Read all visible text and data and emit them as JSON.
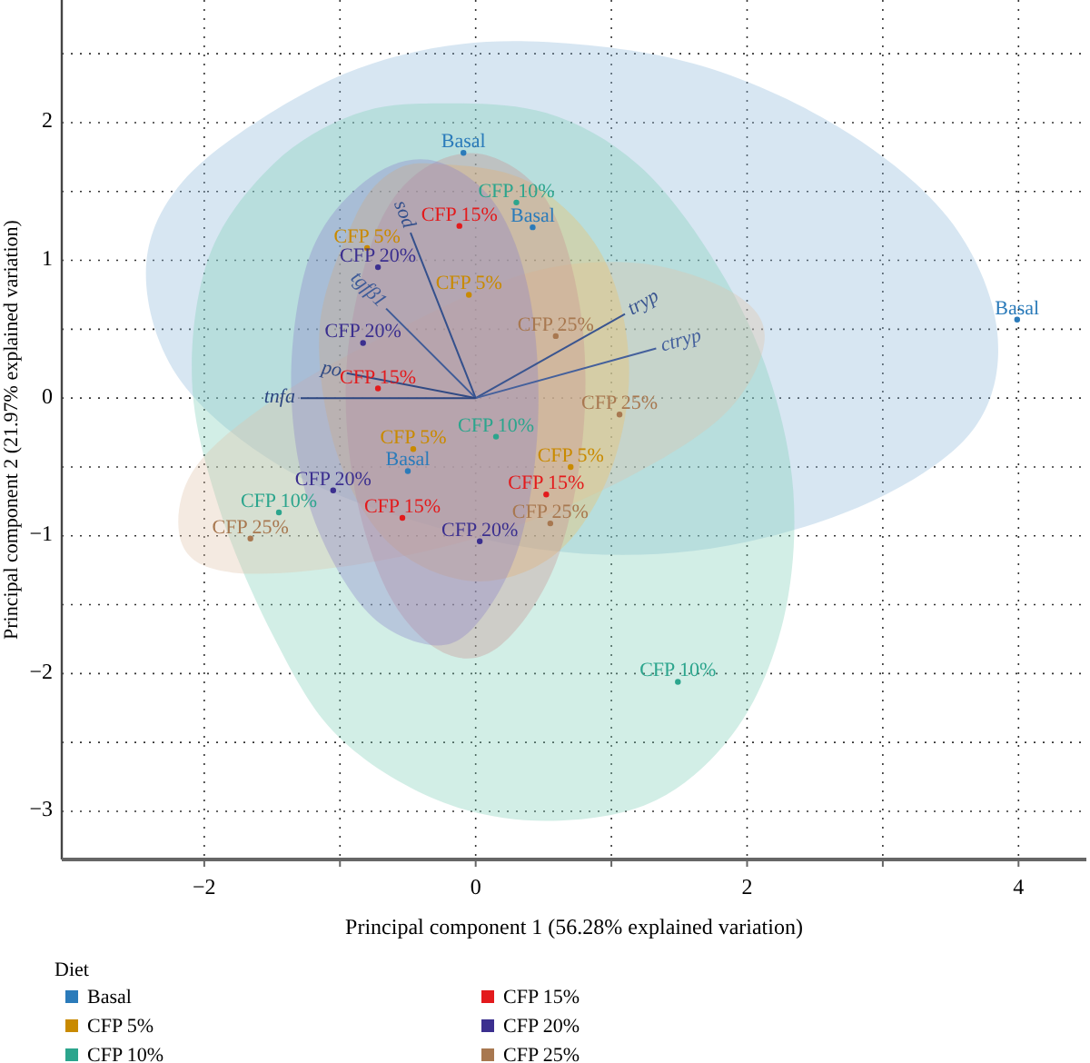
{
  "chart_data": {
    "type": "scatter",
    "xlabel": "Principal component 1 (56.28% explained variation)",
    "ylabel": "Principal component 2 (21.97% explained variation)",
    "legend_title": "Diet",
    "legend": "bottom",
    "grid": true,
    "xlim": [
      -3.05,
      4.5
    ],
    "ylim": [
      -3.35,
      2.89
    ],
    "xticks": [
      -2,
      {
        "value": -1,
        "label": null
      },
      0,
      {
        "value": 1,
        "label": null
      },
      2,
      {
        "value": 3,
        "label": null
      },
      4
    ],
    "yticks": [
      -3,
      {
        "value": -2.5,
        "label": null
      },
      -2,
      {
        "value": -1.5,
        "label": null
      },
      -1,
      {
        "value": -0.5,
        "label": null
      },
      0,
      {
        "value": 0.5,
        "label": null
      },
      1,
      {
        "value": 1.5,
        "label": null
      },
      2,
      {
        "value": 2.5,
        "label": null
      }
    ],
    "series": [
      {
        "type": "area",
        "color": "#8db8d9",
        "x": [
          0.39,
          1.6,
          2.67,
          3.48,
          3.84,
          3.68,
          2.94,
          1.87,
          0.79,
          -0.28,
          -1.36,
          -2.17,
          -2.43,
          -2.16,
          -1.36,
          -0.55
        ],
        "values": [
          2.59,
          2.43,
          1.97,
          1.31,
          0.51,
          -0.21,
          -0.74,
          -1.07,
          -1.13,
          -0.94,
          -0.54,
          0.12,
          0.91,
          1.57,
          2.16,
          2.49
        ]
      },
      {
        "type": "area",
        "color": "#7fcfb8",
        "x": [
          -0.28,
          0.52,
          1.19,
          1.73,
          2.13,
          2.34,
          2.27,
          1.93,
          1.33,
          0.52,
          -0.28,
          -1.02,
          -1.49,
          -1.89,
          -2.09,
          -1.96,
          -1.49,
          -0.89
        ],
        "values": [
          2.14,
          2.07,
          1.7,
          1.04,
          0.25,
          -0.67,
          -1.6,
          -2.39,
          -2.92,
          -3.07,
          -2.92,
          -2.45,
          -1.73,
          -0.8,
          0.12,
          1.04,
          1.7,
          2.06
        ]
      },
      {
        "type": "area",
        "color": "#e0c4a8",
        "x": [
          2.13,
          1.87,
          1.19,
          0.39,
          -0.55,
          -1.49,
          -2.09,
          -2.16,
          -1.76,
          -0.82,
          0.26,
          1.19,
          1.87
        ],
        "values": [
          0.45,
          0.78,
          0.98,
          0.91,
          0.51,
          -0.01,
          -0.54,
          -1.07,
          -1.27,
          -1.2,
          -0.94,
          -0.54,
          -0.08
        ]
      },
      {
        "type": "area",
        "color": "#f0c060",
        "x": [
          -0.28,
          0.39,
          0.93,
          1.13,
          0.99,
          0.59,
          -0.01,
          -0.62,
          -1.02,
          -1.15,
          -0.89,
          -0.62
        ],
        "values": [
          1.7,
          1.57,
          1.04,
          0.25,
          -0.54,
          -1.13,
          -1.33,
          -1.07,
          -0.41,
          0.51,
          1.31,
          1.64
        ]
      },
      {
        "type": "area",
        "color": "#c89090",
        "x": [
          0.05,
          0.52,
          0.77,
          0.79,
          0.59,
          0.19,
          -0.21,
          -0.62,
          -0.89,
          -0.95,
          -0.75,
          -0.42
        ],
        "values": [
          1.77,
          1.44,
          0.65,
          -0.28,
          -1.2,
          -1.79,
          -1.86,
          -1.46,
          -0.67,
          0.25,
          1.17,
          1.64
        ]
      },
      {
        "type": "area",
        "color": "#8a80c8",
        "x": [
          -0.35,
          0.12,
          0.39,
          0.46,
          0.32,
          -0.01,
          -0.35,
          -0.82,
          -1.22,
          -1.36,
          -1.22,
          -0.82
        ],
        "values": [
          1.73,
          1.44,
          0.78,
          -0.15,
          -1.07,
          -1.66,
          -1.79,
          -1.53,
          -0.8,
          0.12,
          1.04,
          1.57
        ]
      },
      {
        "type": "line",
        "name": "tryp",
        "color": "#3a5590",
        "x": [
          0,
          1.1
        ],
        "values": [
          0,
          0.61
        ]
      },
      {
        "type": "line",
        "name": "ctryp",
        "color": "#44609c",
        "x": [
          0,
          1.33
        ],
        "values": [
          0,
          0.36
        ]
      },
      {
        "type": "line",
        "name": "sod",
        "color": "#34508c",
        "x": [
          0,
          -0.48
        ],
        "values": [
          0,
          1.2
        ]
      },
      {
        "type": "line",
        "name": "tgfβ1",
        "color": "#3e5b98",
        "x": [
          0,
          -0.66
        ],
        "values": [
          0,
          0.65
        ]
      },
      {
        "type": "line",
        "name": "po",
        "color": "#304a84",
        "x": [
          0,
          -0.95
        ],
        "values": [
          0,
          0.18
        ]
      },
      {
        "type": "line",
        "name": "tnfa",
        "color": "#2c4680",
        "x": [
          0,
          -1.29
        ],
        "values": [
          0,
          0.0
        ]
      },
      {
        "name": "Basal",
        "marker": "circle",
        "color": "#2b7bba",
        "x": [
          -0.09,
          0.42,
          3.99,
          -0.5
        ],
        "values": [
          1.78,
          1.24,
          0.57,
          -0.53
        ],
        "value_labels": [
          "Basal",
          "Basal",
          "Basal",
          "Basal"
        ]
      },
      {
        "name": "CFP 5%",
        "marker": "circle",
        "color": "#c98a00",
        "x": [
          -0.8,
          -0.05,
          -0.46,
          0.7
        ],
        "values": [
          1.09,
          0.75,
          -0.37,
          -0.5
        ],
        "value_labels": [
          "CFP 5%",
          "CFP 5%",
          "CFP 5%",
          "CFP 5%"
        ]
      },
      {
        "name": "CFP 10%",
        "marker": "circle",
        "color": "#2ca58d",
        "x": [
          0.3,
          0.15,
          -1.45,
          1.49
        ],
        "values": [
          1.42,
          -0.28,
          -0.83,
          -2.06
        ],
        "value_labels": [
          "CFP 10%",
          "CFP 10%",
          "CFP 10%",
          "CFP 10%"
        ]
      },
      {
        "name": "CFP 15%",
        "marker": "circle",
        "color": "#e31a1c",
        "x": [
          -0.12,
          -0.72,
          -0.54,
          0.52
        ],
        "values": [
          1.25,
          0.07,
          -0.87,
          -0.7
        ],
        "value_labels": [
          "CFP 15%",
          "CFP 15%",
          "CFP 15%",
          "CFP 15%"
        ]
      },
      {
        "name": "CFP 20%",
        "marker": "circle",
        "color": "#3b2f8f",
        "x": [
          -0.72,
          -0.83,
          -1.05,
          0.03
        ],
        "values": [
          0.95,
          0.4,
          -0.67,
          -1.04
        ],
        "value_labels": [
          "CFP 20%",
          "CFP 20%",
          "CFP 20%",
          "CFP 20%"
        ]
      },
      {
        "name": "CFP 25%",
        "marker": "circle",
        "color": "#a87850",
        "x": [
          0.59,
          1.06,
          0.55,
          -1.66
        ],
        "values": [
          0.45,
          -0.12,
          -0.91,
          -1.02
        ],
        "value_labels": [
          "CFP 25%",
          "CFP 25%",
          "CFP 25%",
          "CFP 25%"
        ]
      }
    ]
  }
}
